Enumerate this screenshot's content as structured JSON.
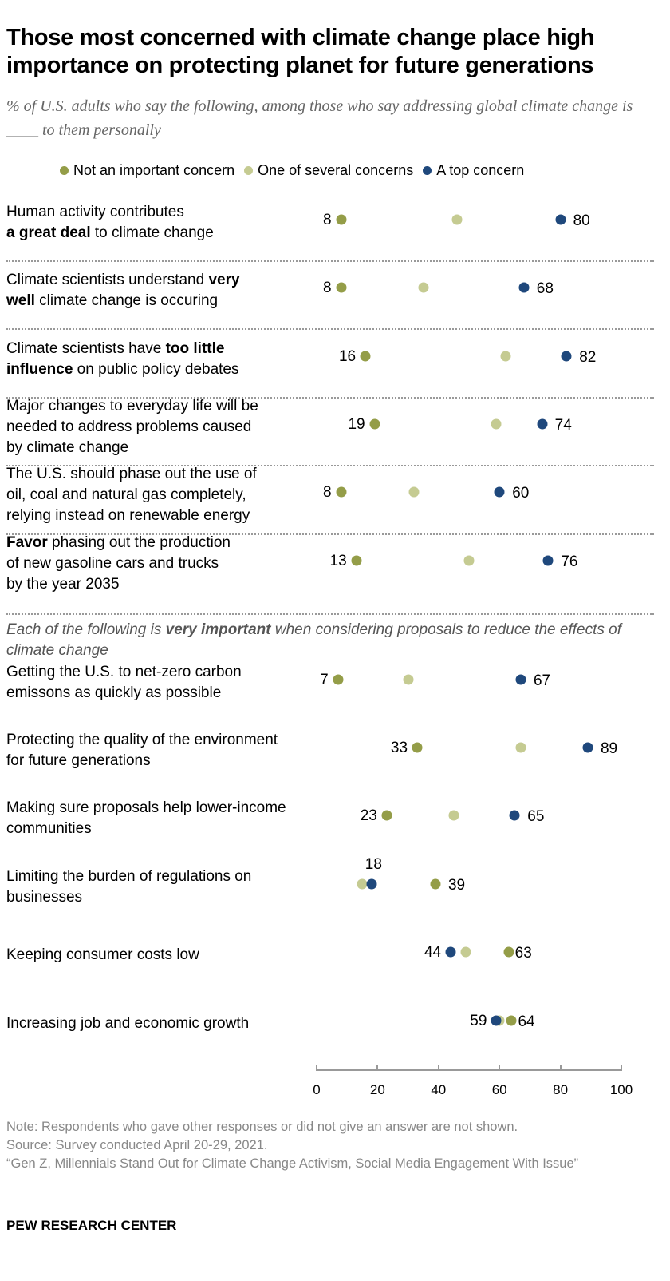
{
  "title": "Those most concerned with climate change place high importance on protecting planet for future generations",
  "subtitle": "% of U.S. adults who say the following, among those who say addressing global climate change is ____ to them personally",
  "colors": {
    "not_important": "#949D48",
    "one_of_several": "#C5CB92",
    "top": "#1F487C"
  },
  "chart_data": {
    "type": "dot",
    "xlim": [
      0,
      100
    ],
    "xticks": [
      "0",
      "20",
      "40",
      "60",
      "80",
      "100"
    ],
    "legend": [
      "Not an important concern",
      "One of several concerns",
      "A top concern"
    ],
    "legend_placement": "top",
    "section_heading": {
      "pre": "Each of the following is ",
      "bold": "very important",
      "post": " when considering proposals to reduce the effects of climate change"
    },
    "rows": [
      {
        "label": [
          [
            "Human activity contributes",
            false
          ],
          [
            "\n",
            false
          ],
          [
            "a great deal",
            true
          ],
          [
            " to climate change",
            false
          ]
        ],
        "not_important": 8,
        "one_of_several": 46,
        "top": 80
      },
      {
        "label": [
          [
            "Climate scientists understand ",
            false
          ],
          [
            "very",
            true
          ],
          [
            "\n",
            false
          ],
          [
            "well",
            true
          ],
          [
            " climate change is occuring",
            false
          ]
        ],
        "not_important": 8,
        "one_of_several": 35,
        "top": 68
      },
      {
        "label": [
          [
            "Climate scientists have ",
            false
          ],
          [
            "too little",
            true
          ],
          [
            "\n",
            false
          ],
          [
            "influence",
            true
          ],
          [
            " on public policy debates",
            false
          ]
        ],
        "not_important": 16,
        "one_of_several": 62,
        "top": 82
      },
      {
        "label": [
          [
            "Major changes to everyday life will be\nneeded to address problems caused\nby climate change",
            false
          ]
        ],
        "not_important": 19,
        "one_of_several": 59,
        "top": 74
      },
      {
        "label": [
          [
            "The U.S. should phase out the use of\noil, coal and natural gas completely,\nrelying instead on renewable energy",
            false
          ]
        ],
        "not_important": 8,
        "one_of_several": 32,
        "top": 60
      },
      {
        "label": [
          [
            "Favor",
            true
          ],
          [
            " phasing out the production\nof new gasoline cars and trucks\nby the year 2035",
            false
          ]
        ],
        "not_important": 13,
        "one_of_several": 50,
        "top": 76
      },
      {
        "label": [
          [
            "Getting the U.S. to net-zero carbon\nemissons as quickly as possible",
            false
          ]
        ],
        "not_important": 7,
        "one_of_several": 30,
        "top": 67
      },
      {
        "label": [
          [
            "Protecting the quality of the environment\nfor future generations",
            false
          ]
        ],
        "not_important": 33,
        "one_of_several": 67,
        "top": 89
      },
      {
        "label": [
          [
            "Making sure proposals help lower-income\ncommunities",
            false
          ]
        ],
        "not_important": 23,
        "one_of_several": 45,
        "top": 65
      },
      {
        "label": [
          [
            "Limiting the burden of regulations on\nbusinesses",
            false
          ]
        ],
        "not_important": 39,
        "one_of_several": 15,
        "top": 18
      },
      {
        "label": [
          [
            "Keeping consumer costs low",
            false
          ]
        ],
        "not_important": 63,
        "one_of_several": 49,
        "top": 44
      },
      {
        "label": [
          [
            "Increasing job and economic growth",
            false
          ]
        ],
        "not_important": 64,
        "one_of_several": 60,
        "top": 59
      }
    ]
  },
  "notes": {
    "note": "Note: Respondents who gave other responses or did not give an answer are not shown.",
    "source": "Source: Survey conducted April 20-29, 2021.",
    "report": "“Gen Z, Millennials Stand Out for Climate Change Activism, Social Media Engagement With Issue”"
  },
  "brand": "PEW RESEARCH CENTER"
}
